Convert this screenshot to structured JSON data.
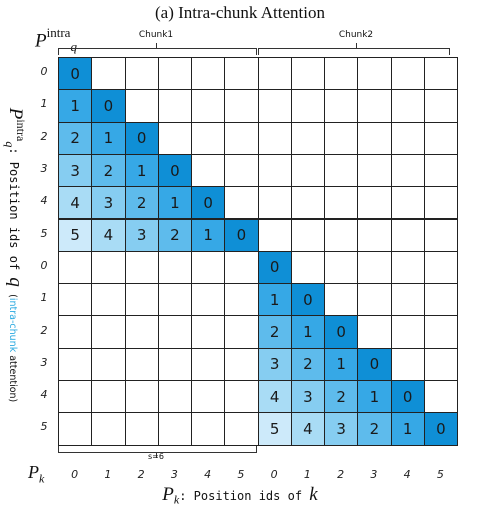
{
  "title": "(a) Intra-chunk Attention",
  "pq_label": {
    "base": "P",
    "sup": "intra",
    "sub": "q"
  },
  "chunk_labels": [
    "Chunk1",
    "Chunk2"
  ],
  "chunk_size_label": "s=6",
  "row_labels": [
    "0",
    "1",
    "2",
    "3",
    "4",
    "5",
    "0",
    "1",
    "2",
    "3",
    "4",
    "5"
  ],
  "col_labels": [
    "0",
    "1",
    "2",
    "3",
    "4",
    "5",
    "0",
    "1",
    "2",
    "3",
    "4",
    "5"
  ],
  "pk_label": {
    "base": "P",
    "sub": "k"
  },
  "y_axis": {
    "base": "P",
    "sup": "intra",
    "sub": "q",
    "text": ": Position ids of",
    "var": "q",
    "paren_open": "(",
    "highlight": "intra-chunk",
    "rest": " attention)"
  },
  "x_axis": {
    "base": "P",
    "sub": "k",
    "text": ": Position ids of",
    "var": "k"
  },
  "colors": {
    "d0": "#0f8fd6",
    "d1": "#36a8e6",
    "d2": "#5ebbec",
    "d3": "#86cdf1",
    "d4": "#a9dcf5",
    "d5": "#cdeafa",
    "empty": "#ffffff",
    "border": "#222222",
    "highlight_text": "#29a9e0"
  },
  "chart_data": {
    "type": "heatmap",
    "title": "(a) Intra-chunk Attention",
    "xlabel": "Pk: Position ids of k",
    "ylabel": "Pq intra: Position ids of q (intra-chunk attention)",
    "rows": 12,
    "cols": 12,
    "chunk_size": 6,
    "matrix": [
      [
        0,
        null,
        null,
        null,
        null,
        null,
        null,
        null,
        null,
        null,
        null,
        null
      ],
      [
        1,
        0,
        null,
        null,
        null,
        null,
        null,
        null,
        null,
        null,
        null,
        null
      ],
      [
        2,
        1,
        0,
        null,
        null,
        null,
        null,
        null,
        null,
        null,
        null,
        null
      ],
      [
        3,
        2,
        1,
        0,
        null,
        null,
        null,
        null,
        null,
        null,
        null,
        null
      ],
      [
        4,
        3,
        2,
        1,
        0,
        null,
        null,
        null,
        null,
        null,
        null,
        null
      ],
      [
        5,
        4,
        3,
        2,
        1,
        0,
        null,
        null,
        null,
        null,
        null,
        null
      ],
      [
        null,
        null,
        null,
        null,
        null,
        null,
        0,
        null,
        null,
        null,
        null,
        null
      ],
      [
        null,
        null,
        null,
        null,
        null,
        null,
        1,
        0,
        null,
        null,
        null,
        null
      ],
      [
        null,
        null,
        null,
        null,
        null,
        null,
        2,
        1,
        0,
        null,
        null,
        null
      ],
      [
        null,
        null,
        null,
        null,
        null,
        null,
        3,
        2,
        1,
        0,
        null,
        null
      ],
      [
        null,
        null,
        null,
        null,
        null,
        null,
        4,
        3,
        2,
        1,
        0,
        null
      ],
      [
        null,
        null,
        null,
        null,
        null,
        null,
        5,
        4,
        3,
        2,
        1,
        0
      ]
    ]
  }
}
